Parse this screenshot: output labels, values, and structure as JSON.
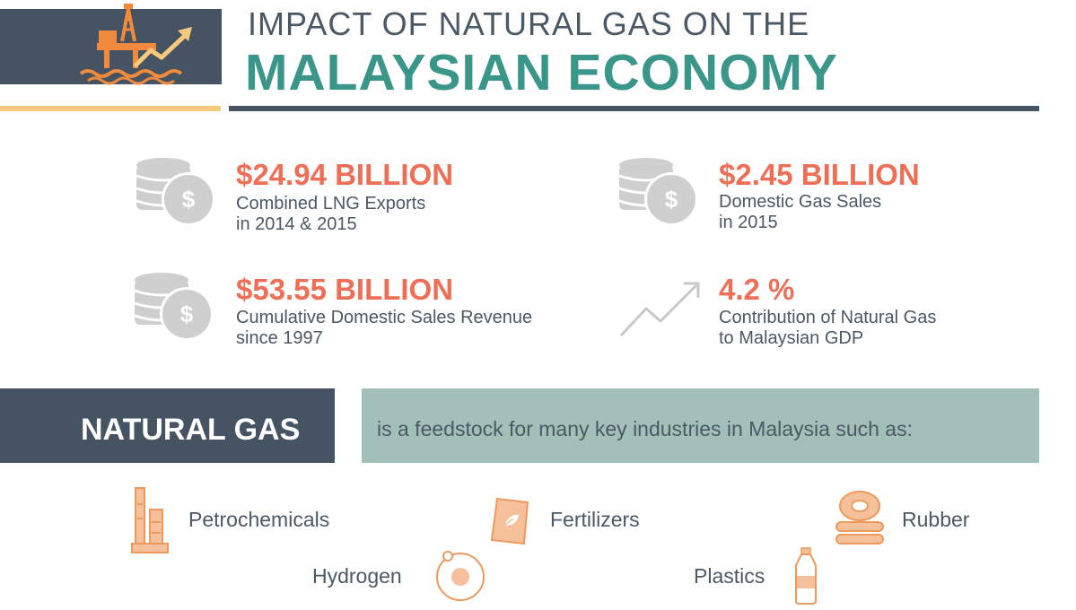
{
  "header": {
    "title_line1": "IMPACT OF NATURAL GAS ON THE",
    "title_line2": "MALAYSIAN ECONOMY"
  },
  "stats": [
    {
      "icon": "coins-dollar-icon",
      "value": "$24.94 BILLION",
      "desc_line1": "Combined LNG Exports",
      "desc_line2": "in 2014 & 2015"
    },
    {
      "icon": "coins-dollar-icon",
      "value": "$2.45 BILLION",
      "desc_line1": "Domestic Gas Sales",
      "desc_line2": "in 2015"
    },
    {
      "icon": "coins-dollar-icon",
      "value": "$53.55 BILLION",
      "desc_line1": "Cumulative Domestic Sales Revenue",
      "desc_line2": "since 1997"
    },
    {
      "icon": "trend-up-icon",
      "value": "4.2 %",
      "desc_line1": "Contribution of Natural Gas",
      "desc_line2": "to Malaysian GDP"
    }
  ],
  "banner": {
    "label": "NATURAL GAS",
    "description": "is a feedstock for many key industries in Malaysia such as:"
  },
  "industries": [
    {
      "icon": "refinery-icon",
      "label": "Petrochemicals"
    },
    {
      "icon": "fertilizer-bag-icon",
      "label": "Fertilizers"
    },
    {
      "icon": "rubber-rings-icon",
      "label": "Rubber"
    },
    {
      "icon": "hydrogen-atom-icon",
      "label": "Hydrogen"
    },
    {
      "icon": "plastic-bottle-icon",
      "label": "Plastics"
    }
  ],
  "colors": {
    "header_dark": "#465362",
    "title_teal": "#3b968a",
    "accent_orange": "#ee6e56",
    "icon_orange": "#f0a774",
    "banner_green": "#a3c0b8",
    "rule_yellow": "#f6c97f",
    "icon_gray": "#cfcfcf"
  }
}
